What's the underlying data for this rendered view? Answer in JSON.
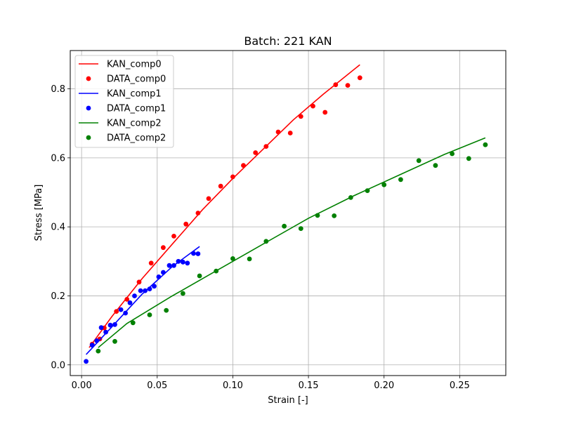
{
  "chart_data": {
    "type": "scatter",
    "title": "Batch: 221 KAN",
    "xlabel": "Strain [-]",
    "ylabel": "Stress [MPa]",
    "xlim": [
      -0.0075,
      0.2805
    ],
    "ylim": [
      -0.031,
      0.911
    ],
    "xticks": [
      0.0,
      0.05,
      0.1,
      0.15,
      0.2,
      0.25
    ],
    "xtick_labels": [
      "0.00",
      "0.05",
      "0.10",
      "0.15",
      "0.20",
      "0.25"
    ],
    "yticks": [
      0.0,
      0.2,
      0.4,
      0.6,
      0.8
    ],
    "ytick_labels": [
      "0.0",
      "0.2",
      "0.4",
      "0.6",
      "0.8"
    ],
    "grid": true,
    "legend_position": "top-left",
    "series": [
      {
        "name": "KAN_comp0",
        "kind": "line",
        "color": "#ff0000",
        "x": [
          0.005,
          0.02,
          0.04,
          0.06,
          0.08,
          0.1,
          0.12,
          0.14,
          0.16,
          0.184
        ],
        "y": [
          0.05,
          0.14,
          0.25,
          0.35,
          0.45,
          0.54,
          0.625,
          0.71,
          0.785,
          0.87
        ]
      },
      {
        "name": "DATA_comp0",
        "kind": "scatter",
        "color": "#ff0000",
        "x": [
          0.007,
          0.012,
          0.015,
          0.023,
          0.03,
          0.038,
          0.046,
          0.054,
          0.061,
          0.069,
          0.077,
          0.084,
          0.092,
          0.1,
          0.107,
          0.115,
          0.122,
          0.13,
          0.138,
          0.145,
          0.153,
          0.161,
          0.168,
          0.176,
          0.184
        ],
        "y": [
          0.06,
          0.075,
          0.107,
          0.155,
          0.19,
          0.24,
          0.295,
          0.34,
          0.373,
          0.408,
          0.44,
          0.482,
          0.518,
          0.545,
          0.578,
          0.615,
          0.633,
          0.675,
          0.672,
          0.72,
          0.75,
          0.732,
          0.812,
          0.81,
          0.832
        ]
      },
      {
        "name": "KAN_comp1",
        "kind": "line",
        "color": "#0000ff",
        "x": [
          0.003,
          0.02,
          0.04,
          0.06,
          0.078
        ],
        "y": [
          0.03,
          0.11,
          0.205,
          0.285,
          0.343
        ]
      },
      {
        "name": "DATA_comp1",
        "kind": "scatter",
        "color": "#0000ff",
        "x": [
          0.003,
          0.007,
          0.01,
          0.013,
          0.016,
          0.019,
          0.022,
          0.026,
          0.029,
          0.032,
          0.035,
          0.039,
          0.042,
          0.045,
          0.048,
          0.051,
          0.054,
          0.058,
          0.061,
          0.064,
          0.067,
          0.07,
          0.074,
          0.077
        ],
        "y": [
          0.01,
          0.057,
          0.07,
          0.108,
          0.095,
          0.115,
          0.117,
          0.16,
          0.15,
          0.18,
          0.2,
          0.215,
          0.215,
          0.22,
          0.228,
          0.255,
          0.268,
          0.288,
          0.288,
          0.3,
          0.298,
          0.295,
          0.323,
          0.322
        ]
      },
      {
        "name": "KAN_comp2",
        "kind": "line",
        "color": "#008000",
        "x": [
          0.011,
          0.03,
          0.06,
          0.09,
          0.12,
          0.15,
          0.18,
          0.21,
          0.24,
          0.267
        ],
        "y": [
          0.05,
          0.12,
          0.2,
          0.275,
          0.35,
          0.425,
          0.49,
          0.55,
          0.61,
          0.658
        ]
      },
      {
        "name": "DATA_comp2",
        "kind": "scatter",
        "color": "#008000",
        "x": [
          0.011,
          0.022,
          0.034,
          0.045,
          0.056,
          0.067,
          0.078,
          0.089,
          0.1,
          0.111,
          0.122,
          0.134,
          0.145,
          0.156,
          0.167,
          0.178,
          0.189,
          0.2,
          0.211,
          0.223,
          0.234,
          0.245,
          0.256,
          0.267
        ],
        "y": [
          0.04,
          0.068,
          0.122,
          0.145,
          0.158,
          0.207,
          0.258,
          0.272,
          0.308,
          0.307,
          0.358,
          0.402,
          0.395,
          0.433,
          0.432,
          0.485,
          0.505,
          0.522,
          0.537,
          0.592,
          0.578,
          0.612,
          0.598,
          0.638
        ]
      }
    ]
  }
}
